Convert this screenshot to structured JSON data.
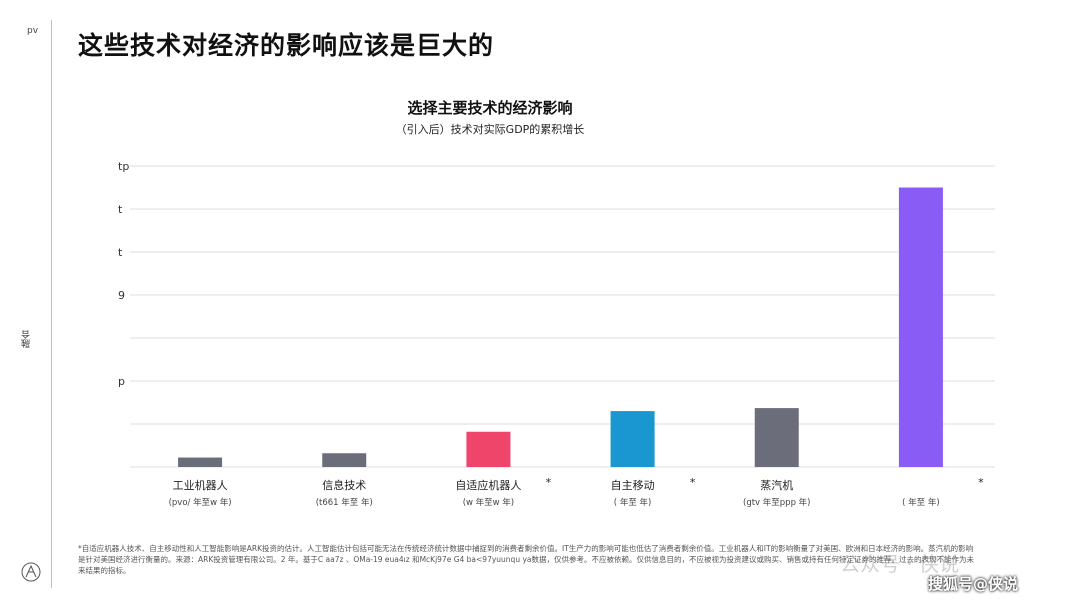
{
  "page": {
    "number": "pv",
    "side_label": "融合",
    "title": "这些技术对经济的影响应该是巨大的"
  },
  "footnote": "*自适应机器人技术、自主移动性和人工智能影响是ARK投资的估计。人工智能估计包括可能无法在传统经济统计数据中捕捉到的消费者剩余价值。IT生产力的影响可能也低估了消费者剩余价值。工业机器人和IT的影响衡量了对美国、欧洲和日本经济的影响。蒸汽机的影响是针对美国经济进行衡量的。来源：ARK投资管理有限公司。2 年。基于C aa7z 、OMa-19 eua4ız 和McKj97e G4 ba<97yuunqu ya数据，仅供参考。不应被依赖。仅供信息目的，不应被视为投资建议或购买、销售或持有任何特定证券的推荐。过去的表现不能作为未来结果的指标。",
  "watermarks": {
    "wechat": "公众号 · 侠说",
    "sohu": "搜狐号@侠说"
  },
  "colors": {
    "gray_bar": "#6b6e7a",
    "pink_bar": "#f0456a",
    "blue_bar": "#1a96d0",
    "purple_bar": "#8a5cf6",
    "grid": "#dcdcdc"
  },
  "chart_data": {
    "type": "bar",
    "title": "选择主要技术的经济影响",
    "subtitle": "（引入后）技术对实际GDP的累积增长",
    "y_tick_labels": [
      "tp",
      "t",
      "t",
      "9",
      "",
      "p",
      ""
    ],
    "ylim": [
      0,
      7
    ],
    "grid": true,
    "categories": [
      "工业机器人",
      "信息技术",
      "自适应机器人",
      "自主移动",
      "蒸汽机",
      ""
    ],
    "asterisks": [
      "",
      "",
      "*",
      "*",
      "",
      "*"
    ],
    "subcaptions": [
      "(pvo/ 年至w 年)",
      "(t661 年至 年)",
      "(w 年至w 年)",
      "( 年至 年)",
      "(gtv 年至ppp 年)",
      "( 年至 年)"
    ],
    "values": [
      0.22,
      0.32,
      0.82,
      1.3,
      1.37,
      6.5
    ],
    "colors": [
      "#6b6e7a",
      "#6b6e7a",
      "#f0456a",
      "#1a96d0",
      "#6b6e7a",
      "#8a5cf6"
    ]
  }
}
